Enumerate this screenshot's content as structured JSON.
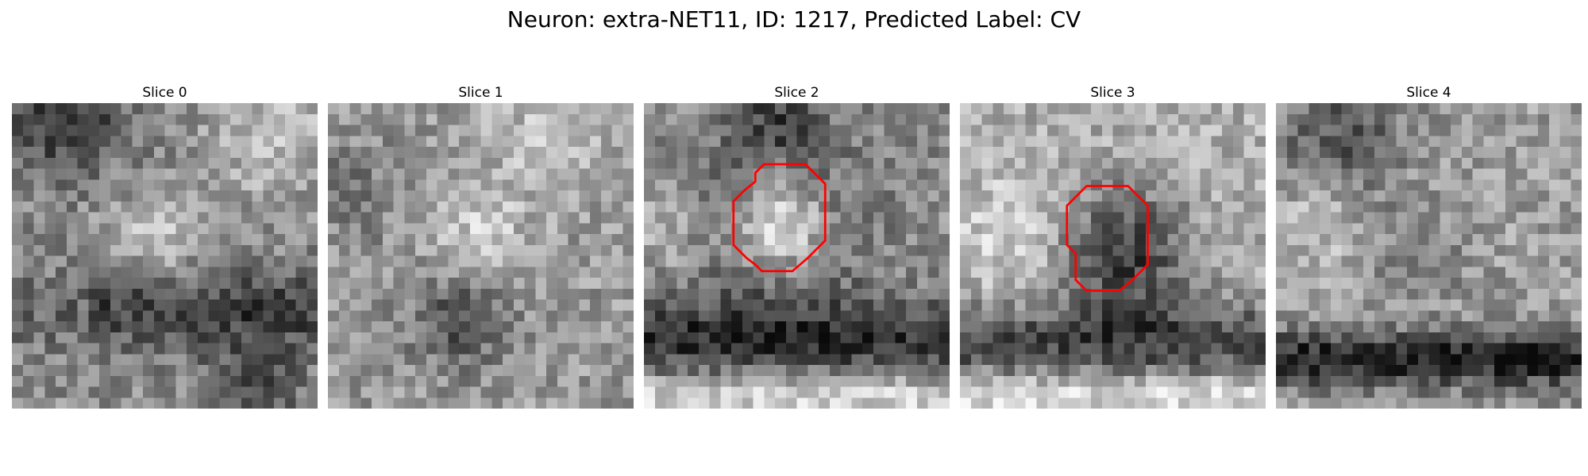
{
  "figure": {
    "title": "Neuron: extra-NET11, ID: 1217, Predicted Label: CV"
  },
  "slices": [
    {
      "title": "Slice 0"
    },
    {
      "title": "Slice 1"
    },
    {
      "title": "Slice 2"
    },
    {
      "title": "Slice 3"
    },
    {
      "title": "Slice 4"
    }
  ],
  "colors": {
    "outline": "#ff0000",
    "colormap": "gray"
  }
}
